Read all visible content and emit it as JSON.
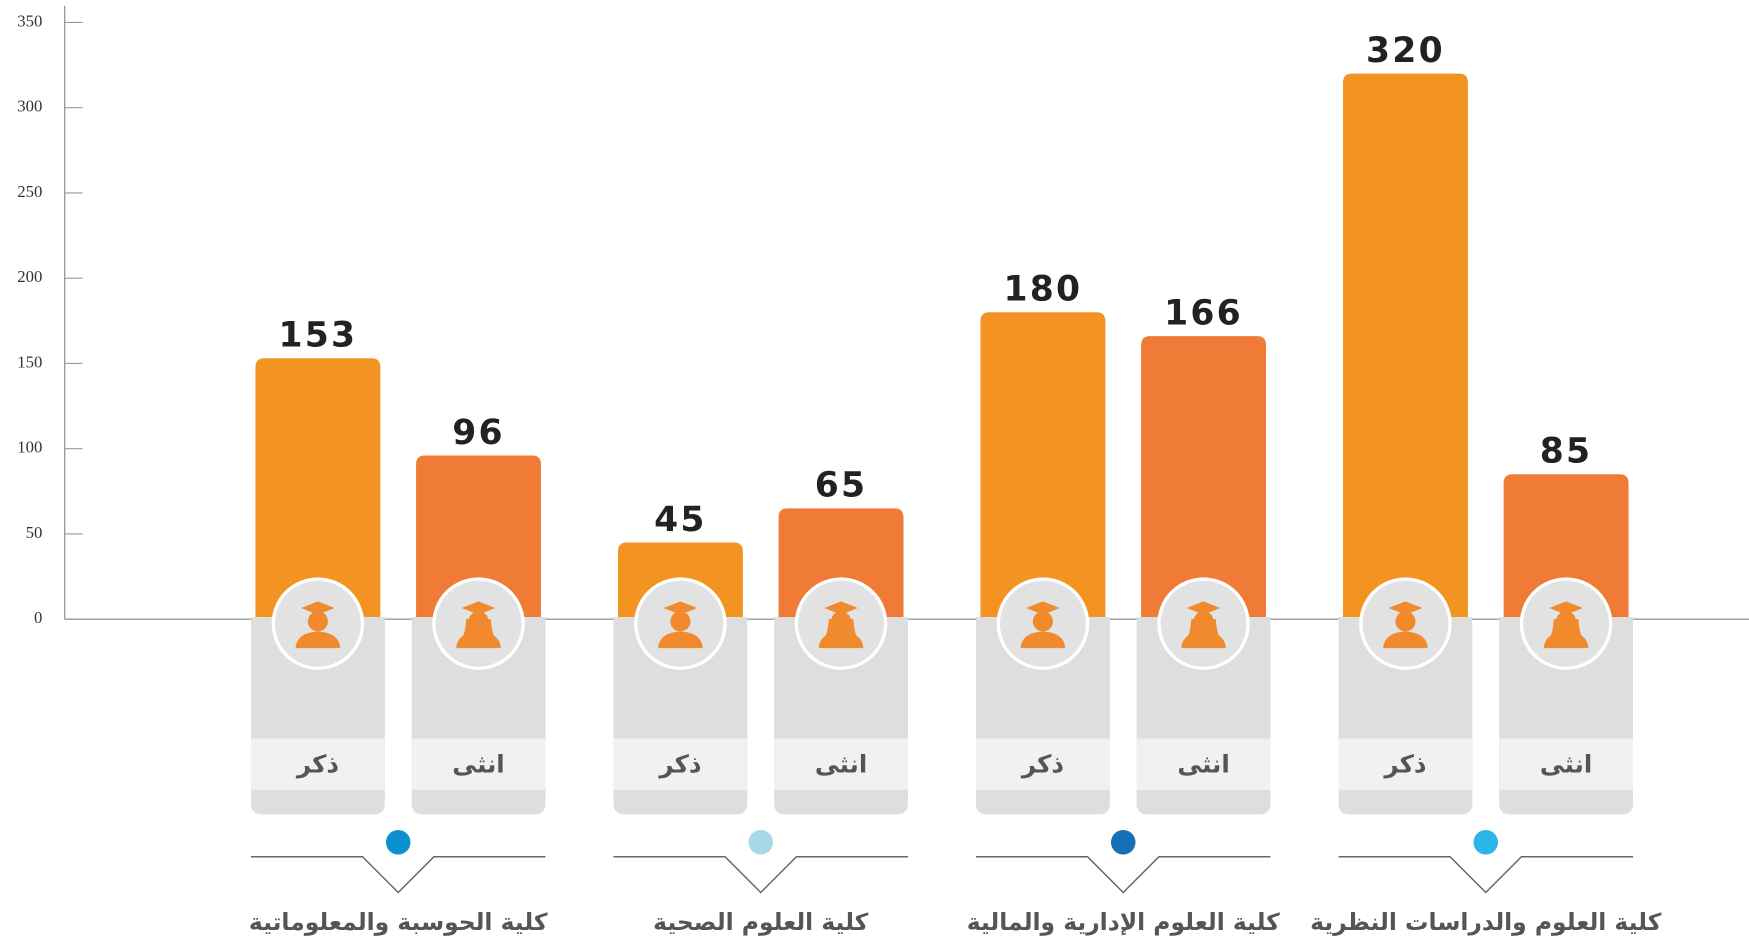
{
  "chart_data": {
    "type": "bar",
    "categories": [
      "كلية الحوسبة والمعلوماتية",
      "كلية العلوم الصحية",
      "كلية العلوم الإدارية والمالية",
      "كلية العلوم والدراسات النظرية"
    ],
    "category_colors": [
      "#0b8fcf",
      "#a6d8e6",
      "#1570b8",
      "#2ab6e9"
    ],
    "series": [
      {
        "name": "ذكر",
        "color": "#f39422",
        "values": [
          153,
          45,
          180,
          320
        ]
      },
      {
        "name": "انثى",
        "color": "#ef7b37",
        "values": [
          96,
          65,
          166,
          85
        ]
      }
    ],
    "ylim": [
      0,
      350
    ],
    "yticks": [
      0,
      50,
      100,
      150,
      200,
      250,
      300,
      350
    ]
  }
}
